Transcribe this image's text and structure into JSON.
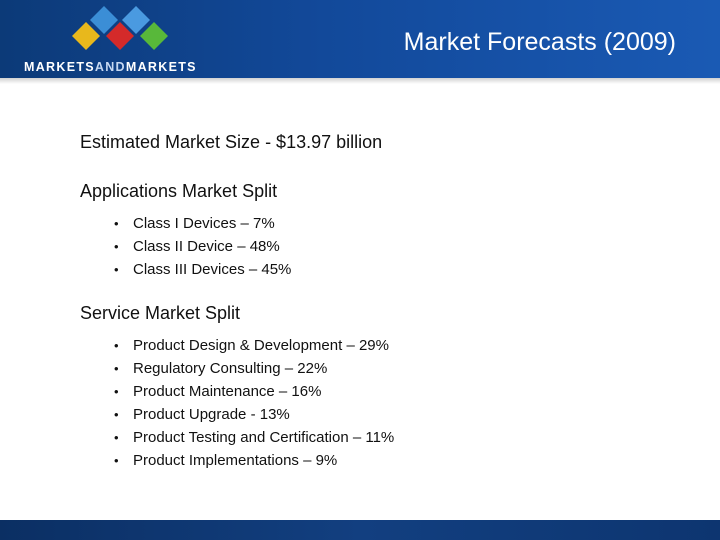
{
  "header": {
    "title": "Market Forecasts (2009)",
    "logo": {
      "text_part1": "MARKETS",
      "text_part2": "AND",
      "text_part3": "MARKETS"
    },
    "colors": {
      "background": "#12499a",
      "diamond_blue": "#3b8ed6",
      "diamond_yellow": "#e8b81c",
      "diamond_red": "#d42a2a",
      "diamond_green": "#58b83a"
    }
  },
  "content": {
    "market_size": "Estimated Market Size - $13.97 billion",
    "applications": {
      "heading": "Applications Market Split",
      "items": [
        "Class I Devices – 7%",
        "Class II Device – 48%",
        "Class III Devices – 45%"
      ]
    },
    "service": {
      "heading": "Service Market Split",
      "items": [
        "Product Design & Development – 29%",
        "Regulatory Consulting – 22%",
        "Product Maintenance – 16%",
        "Product Upgrade - 13%",
        "Product Testing and Certification – 11%",
        "Product Implementations – 9%"
      ]
    },
    "bullet": "•"
  }
}
